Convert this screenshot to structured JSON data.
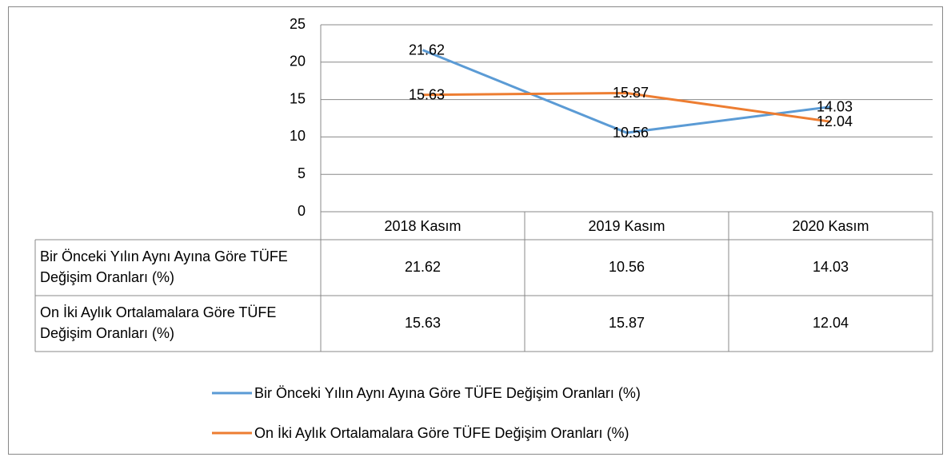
{
  "chart_data": {
    "type": "line",
    "categories": [
      "2018 Kasım",
      "2019 Kasım",
      "2020 Kasım"
    ],
    "series": [
      {
        "name": "Bir Önceki Yılın Aynı Ayına Göre TÜFE Değişim Oranları (%)",
        "color": "#5b9bd5",
        "values": [
          21.62,
          10.56,
          14.03
        ]
      },
      {
        "name": "On İki Aylık Ortalamalara Göre TÜFE Değişim Oranları (%)",
        "color": "#ed7d31",
        "values": [
          15.63,
          15.87,
          12.04
        ]
      }
    ],
    "ylim": [
      0,
      25
    ],
    "yticks": [
      0,
      5,
      10,
      15,
      20,
      25
    ],
    "grid": true,
    "legend": "bottom"
  }
}
